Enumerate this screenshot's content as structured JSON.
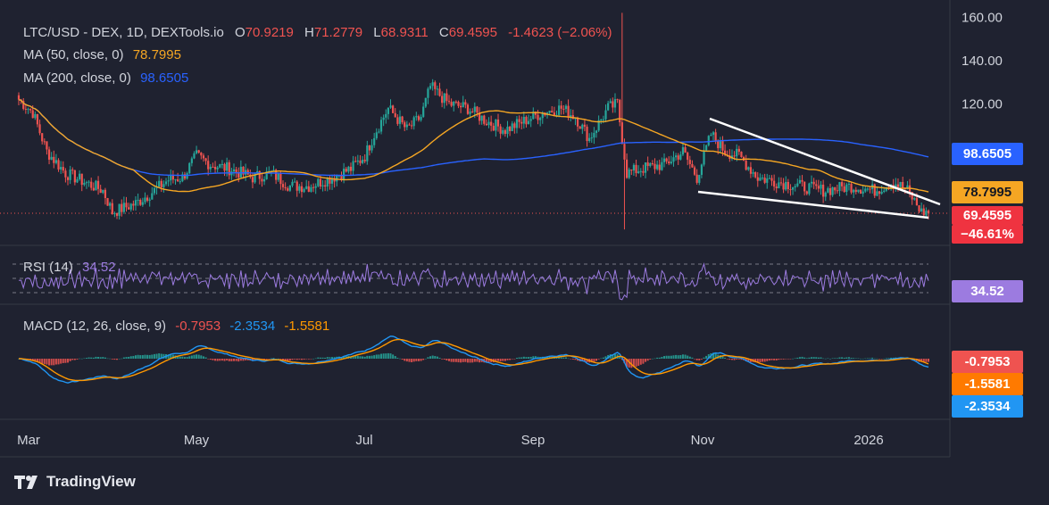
{
  "header": {
    "symbol": "LTC/USD - DEX, 1D, DEXTools.io",
    "open_label": "O",
    "open": "70.9219",
    "high_label": "H",
    "high": "71.2779",
    "low_label": "L",
    "low": "68.9311",
    "close_label": "C",
    "close": "69.4595",
    "change": "-1.4623 (−2.06%)"
  },
  "ma50": {
    "label": "MA (50, close, 0)",
    "value": "78.7995",
    "color": "#f5a623"
  },
  "ma200": {
    "label": "MA (200, close, 0)",
    "value": "98.6505",
    "color": "#2962ff"
  },
  "rsi": {
    "label": "RSI (14)",
    "value": "34.52",
    "color": "#9c7be0"
  },
  "macd": {
    "label": "MACD (12, 26, close, 9)",
    "macd_value": "-0.7953",
    "signal_value": "-2.3534",
    "hist_value": "-1.5581"
  },
  "badges": {
    "ma200": "98.6505",
    "ma50": "78.7995",
    "price": "69.4595",
    "price_change": "−46.61%",
    "rsi": "34.52",
    "macd1": "-0.7953",
    "macd2": "-1.5581",
    "macd3": "-2.3534"
  },
  "branding": {
    "name": "TradingView"
  },
  "colors": {
    "background": "#1f2230",
    "up": "#26a69a",
    "down": "#ef5350",
    "ma50": "#f5a623",
    "ma200": "#2962ff",
    "rsi": "#9c7be0",
    "wedge": "#ffffff"
  },
  "chart_data": {
    "type": "candlestick",
    "title": "LTC/USD - DEX, 1D, DEXTools.io",
    "x_ticks": [
      "Mar",
      "May",
      "Jul",
      "Sep",
      "Nov",
      "2026"
    ],
    "y_ticks": [
      "160.00",
      "140.00",
      "120.00"
    ],
    "ylim": [
      60,
      163
    ],
    "price_anchors": [
      [
        0,
        122
      ],
      [
        6,
        116
      ],
      [
        12,
        98
      ],
      [
        20,
        88
      ],
      [
        28,
        84
      ],
      [
        36,
        80
      ],
      [
        40,
        70
      ],
      [
        50,
        74
      ],
      [
        58,
        80
      ],
      [
        64,
        85
      ],
      [
        70,
        86
      ],
      [
        76,
        96
      ],
      [
        82,
        92
      ],
      [
        90,
        90
      ],
      [
        100,
        86
      ],
      [
        108,
        88
      ],
      [
        116,
        82
      ],
      [
        124,
        82
      ],
      [
        134,
        86
      ],
      [
        142,
        90
      ],
      [
        148,
        96
      ],
      [
        152,
        106
      ],
      [
        158,
        118
      ],
      [
        166,
        108
      ],
      [
        172,
        114
      ],
      [
        176,
        128
      ],
      [
        184,
        120
      ],
      [
        192,
        118
      ],
      [
        200,
        112
      ],
      [
        208,
        108
      ],
      [
        216,
        112
      ],
      [
        224,
        116
      ],
      [
        232,
        118
      ],
      [
        238,
        114
      ],
      [
        244,
        104
      ],
      [
        252,
        118
      ],
      [
        256,
        120
      ],
      [
        260,
        88
      ],
      [
        266,
        90
      ],
      [
        276,
        92
      ],
      [
        284,
        98
      ],
      [
        290,
        86
      ],
      [
        296,
        106
      ],
      [
        302,
        98
      ],
      [
        308,
        96
      ],
      [
        316,
        86
      ],
      [
        324,
        84
      ],
      [
        334,
        82
      ],
      [
        344,
        80
      ],
      [
        356,
        82
      ],
      [
        366,
        80
      ],
      [
        374,
        84
      ],
      [
        380,
        80
      ],
      [
        386,
        70
      ]
    ],
    "series": [
      {
        "name": "MA (50, close, 0)",
        "value": 78.7995
      },
      {
        "name": "MA (200, close, 0)",
        "value": 98.6505
      }
    ],
    "rsi": {
      "label": "RSI (14)",
      "value": 34.52,
      "ylim": [
        0,
        100
      ],
      "bands": [
        30,
        50,
        70
      ]
    },
    "macd": {
      "label": "MACD (12, 26, close, 9)",
      "values": [
        -0.7953,
        -2.3534,
        -1.5581
      ]
    },
    "annotations": [
      "falling wedge trendlines"
    ],
    "grid": false
  }
}
